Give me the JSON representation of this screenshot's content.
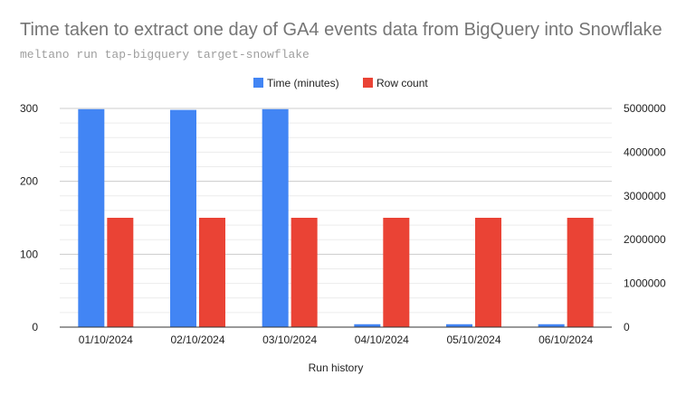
{
  "chart_data": {
    "type": "bar",
    "title": "Time taken to extract one day of GA4 events data from BigQuery into Snowflake",
    "subtitle": "meltano run tap-bigquery target-snowflake",
    "xlabel": "Run history",
    "categories": [
      "01/10/2024",
      "02/10/2024",
      "03/10/2024",
      "04/10/2024",
      "05/10/2024",
      "06/10/2024"
    ],
    "series": [
      {
        "name": "Time (minutes)",
        "axis": "left",
        "color": "#4285f4",
        "values": [
          299,
          298,
          299,
          4,
          4,
          4
        ]
      },
      {
        "name": "Row count",
        "axis": "right",
        "color": "#ea4335",
        "values": [
          2500000,
          2500000,
          2500000,
          2500000,
          2500000,
          2500000
        ]
      }
    ],
    "y_left": {
      "min": 0,
      "max": 300,
      "ticks": [
        0,
        100,
        200,
        300
      ]
    },
    "y_right": {
      "min": 0,
      "max": 5000000,
      "ticks": [
        0,
        1000000,
        2000000,
        3000000,
        4000000,
        5000000
      ]
    },
    "legend_position": "top",
    "grid": true
  }
}
